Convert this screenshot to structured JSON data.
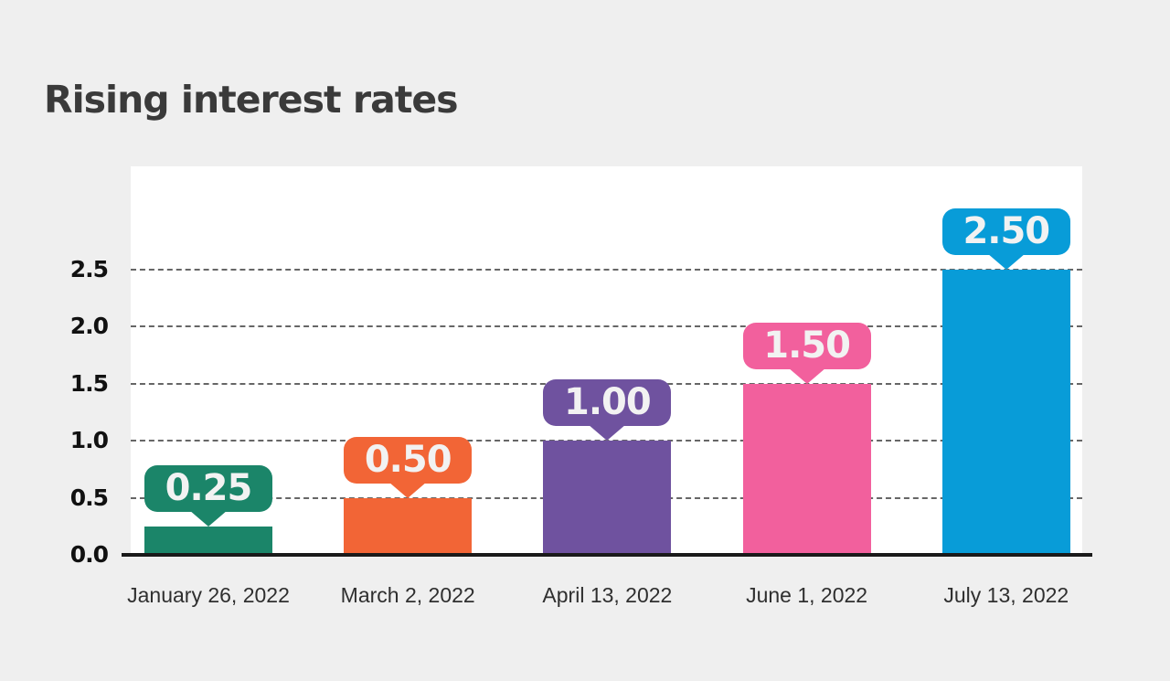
{
  "page": {
    "background": "#EFEFEF",
    "title": "Rising interest rates",
    "title_color": "#3A3A3A"
  },
  "chart_data": {
    "type": "bar",
    "title": "Rising interest rates",
    "categories": [
      "January 26, 2022",
      "March 2, 2022",
      "April 13, 2022",
      "June 1, 2022",
      "July 13, 2022"
    ],
    "values": [
      0.25,
      0.5,
      1.0,
      1.5,
      2.5
    ],
    "data_labels": [
      "0.25",
      "0.50",
      "1.00",
      "1.50",
      "2.50"
    ],
    "bar_colors": [
      "#1B8569",
      "#F26536",
      "#6F529F",
      "#F2609D",
      "#089CD8"
    ],
    "yticks": [
      "0.0",
      "0.5",
      "1.0",
      "1.5",
      "2.0",
      "2.5"
    ],
    "ylim": [
      0,
      2.5
    ],
    "grid": "horizontal-dashed",
    "legend": "none",
    "plot_bg": "#FFFFFF",
    "gridline_color": "#666666",
    "axis_color": "#1A1A1A",
    "value_label_text_color": "#F2F2F2"
  }
}
